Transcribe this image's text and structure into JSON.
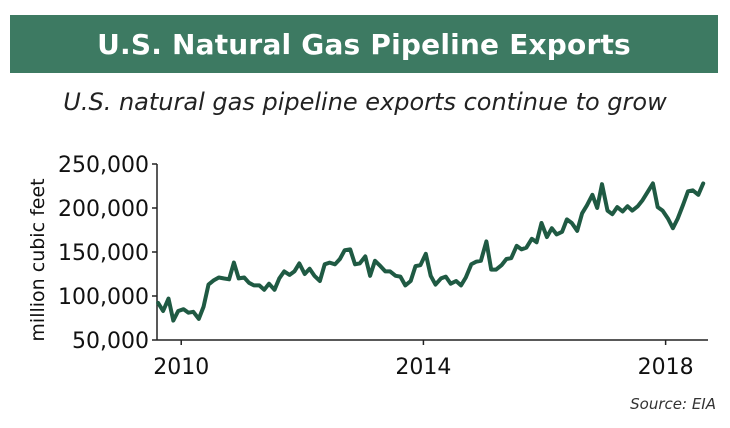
{
  "header": {
    "title": "U.S. Natural Gas Pipeline Exports"
  },
  "subtitle": "U.S. natural gas pipeline exports continue to grow",
  "source": "Source: EIA",
  "colors": {
    "banner": "#3d7a62",
    "line": "#1f5a43",
    "axis": "#222222"
  },
  "chart_data": {
    "type": "line",
    "title": "",
    "xlabel": "",
    "ylabel": "million cubic feet",
    "ylim": [
      50000,
      250000
    ],
    "yticks": [
      50000,
      100000,
      150000,
      200000,
      250000
    ],
    "ytick_labels": [
      "50,000",
      "100,000",
      "150,000",
      "200,000",
      "250,000"
    ],
    "xlim": [
      2009.6,
      2018.7
    ],
    "xticks": [
      2010,
      2014,
      2018
    ],
    "xtick_labels": [
      "2010",
      "2014",
      "2018"
    ],
    "grid": false,
    "series": [
      {
        "values": [
          [
            2009.62,
            92000
          ],
          [
            2009.7,
            83000
          ],
          [
            2009.79,
            97000
          ],
          [
            2009.87,
            72000
          ],
          [
            2009.95,
            83000
          ],
          [
            2010.04,
            85000
          ],
          [
            2010.12,
            81000
          ],
          [
            2010.2,
            82000
          ],
          [
            2010.29,
            74000
          ],
          [
            2010.37,
            88000
          ],
          [
            2010.45,
            113000
          ],
          [
            2010.54,
            118000
          ],
          [
            2010.62,
            121000
          ],
          [
            2010.7,
            120000
          ],
          [
            2010.79,
            119000
          ],
          [
            2010.87,
            138000
          ],
          [
            2010.95,
            120000
          ],
          [
            2011.04,
            121000
          ],
          [
            2011.12,
            115000
          ],
          [
            2011.2,
            112000
          ],
          [
            2011.29,
            112000
          ],
          [
            2011.37,
            107000
          ],
          [
            2011.45,
            114000
          ],
          [
            2011.54,
            107000
          ],
          [
            2011.62,
            120000
          ],
          [
            2011.7,
            128000
          ],
          [
            2011.79,
            124000
          ],
          [
            2011.87,
            128000
          ],
          [
            2011.95,
            137000
          ],
          [
            2012.04,
            125000
          ],
          [
            2012.12,
            131000
          ],
          [
            2012.2,
            123000
          ],
          [
            2012.29,
            117000
          ],
          [
            2012.37,
            136000
          ],
          [
            2012.45,
            138000
          ],
          [
            2012.54,
            136000
          ],
          [
            2012.62,
            142000
          ],
          [
            2012.7,
            152000
          ],
          [
            2012.79,
            153000
          ],
          [
            2012.87,
            136000
          ],
          [
            2012.95,
            137000
          ],
          [
            2013.04,
            145000
          ],
          [
            2013.12,
            123000
          ],
          [
            2013.2,
            140000
          ],
          [
            2013.29,
            134000
          ],
          [
            2013.37,
            128000
          ],
          [
            2013.45,
            128000
          ],
          [
            2013.54,
            123000
          ],
          [
            2013.62,
            122000
          ],
          [
            2013.7,
            112000
          ],
          [
            2013.79,
            117000
          ],
          [
            2013.87,
            134000
          ],
          [
            2013.95,
            135000
          ],
          [
            2014.04,
            148000
          ],
          [
            2014.12,
            123000
          ],
          [
            2014.2,
            113000
          ],
          [
            2014.29,
            120000
          ],
          [
            2014.37,
            122000
          ],
          [
            2014.45,
            114000
          ],
          [
            2014.54,
            117000
          ],
          [
            2014.62,
            112000
          ],
          [
            2014.7,
            121000
          ],
          [
            2014.79,
            136000
          ],
          [
            2014.87,
            139000
          ],
          [
            2014.95,
            140000
          ],
          [
            2015.04,
            162000
          ],
          [
            2015.12,
            130000
          ],
          [
            2015.2,
            130000
          ],
          [
            2015.29,
            135000
          ],
          [
            2015.37,
            142000
          ],
          [
            2015.45,
            143000
          ],
          [
            2015.54,
            157000
          ],
          [
            2015.62,
            153000
          ],
          [
            2015.7,
            155000
          ],
          [
            2015.79,
            165000
          ],
          [
            2015.87,
            161000
          ],
          [
            2015.95,
            183000
          ],
          [
            2016.04,
            167000
          ],
          [
            2016.12,
            177000
          ],
          [
            2016.2,
            170000
          ],
          [
            2016.29,
            173000
          ],
          [
            2016.37,
            187000
          ],
          [
            2016.45,
            183000
          ],
          [
            2016.54,
            174000
          ],
          [
            2016.62,
            194000
          ],
          [
            2016.7,
            203000
          ],
          [
            2016.79,
            215000
          ],
          [
            2016.87,
            200000
          ],
          [
            2016.95,
            227000
          ],
          [
            2017.04,
            197000
          ],
          [
            2017.12,
            193000
          ],
          [
            2017.2,
            201000
          ],
          [
            2017.29,
            196000
          ],
          [
            2017.37,
            202000
          ],
          [
            2017.45,
            197000
          ],
          [
            2017.54,
            202000
          ],
          [
            2017.62,
            209000
          ],
          [
            2017.7,
            218000
          ],
          [
            2017.79,
            228000
          ],
          [
            2017.87,
            201000
          ],
          [
            2017.95,
            197000
          ],
          [
            2018.04,
            188000
          ],
          [
            2018.12,
            177000
          ],
          [
            2018.2,
            188000
          ],
          [
            2018.29,
            204000
          ],
          [
            2018.37,
            219000
          ],
          [
            2018.45,
            220000
          ],
          [
            2018.54,
            215000
          ],
          [
            2018.62,
            228000
          ]
        ]
      }
    ]
  }
}
